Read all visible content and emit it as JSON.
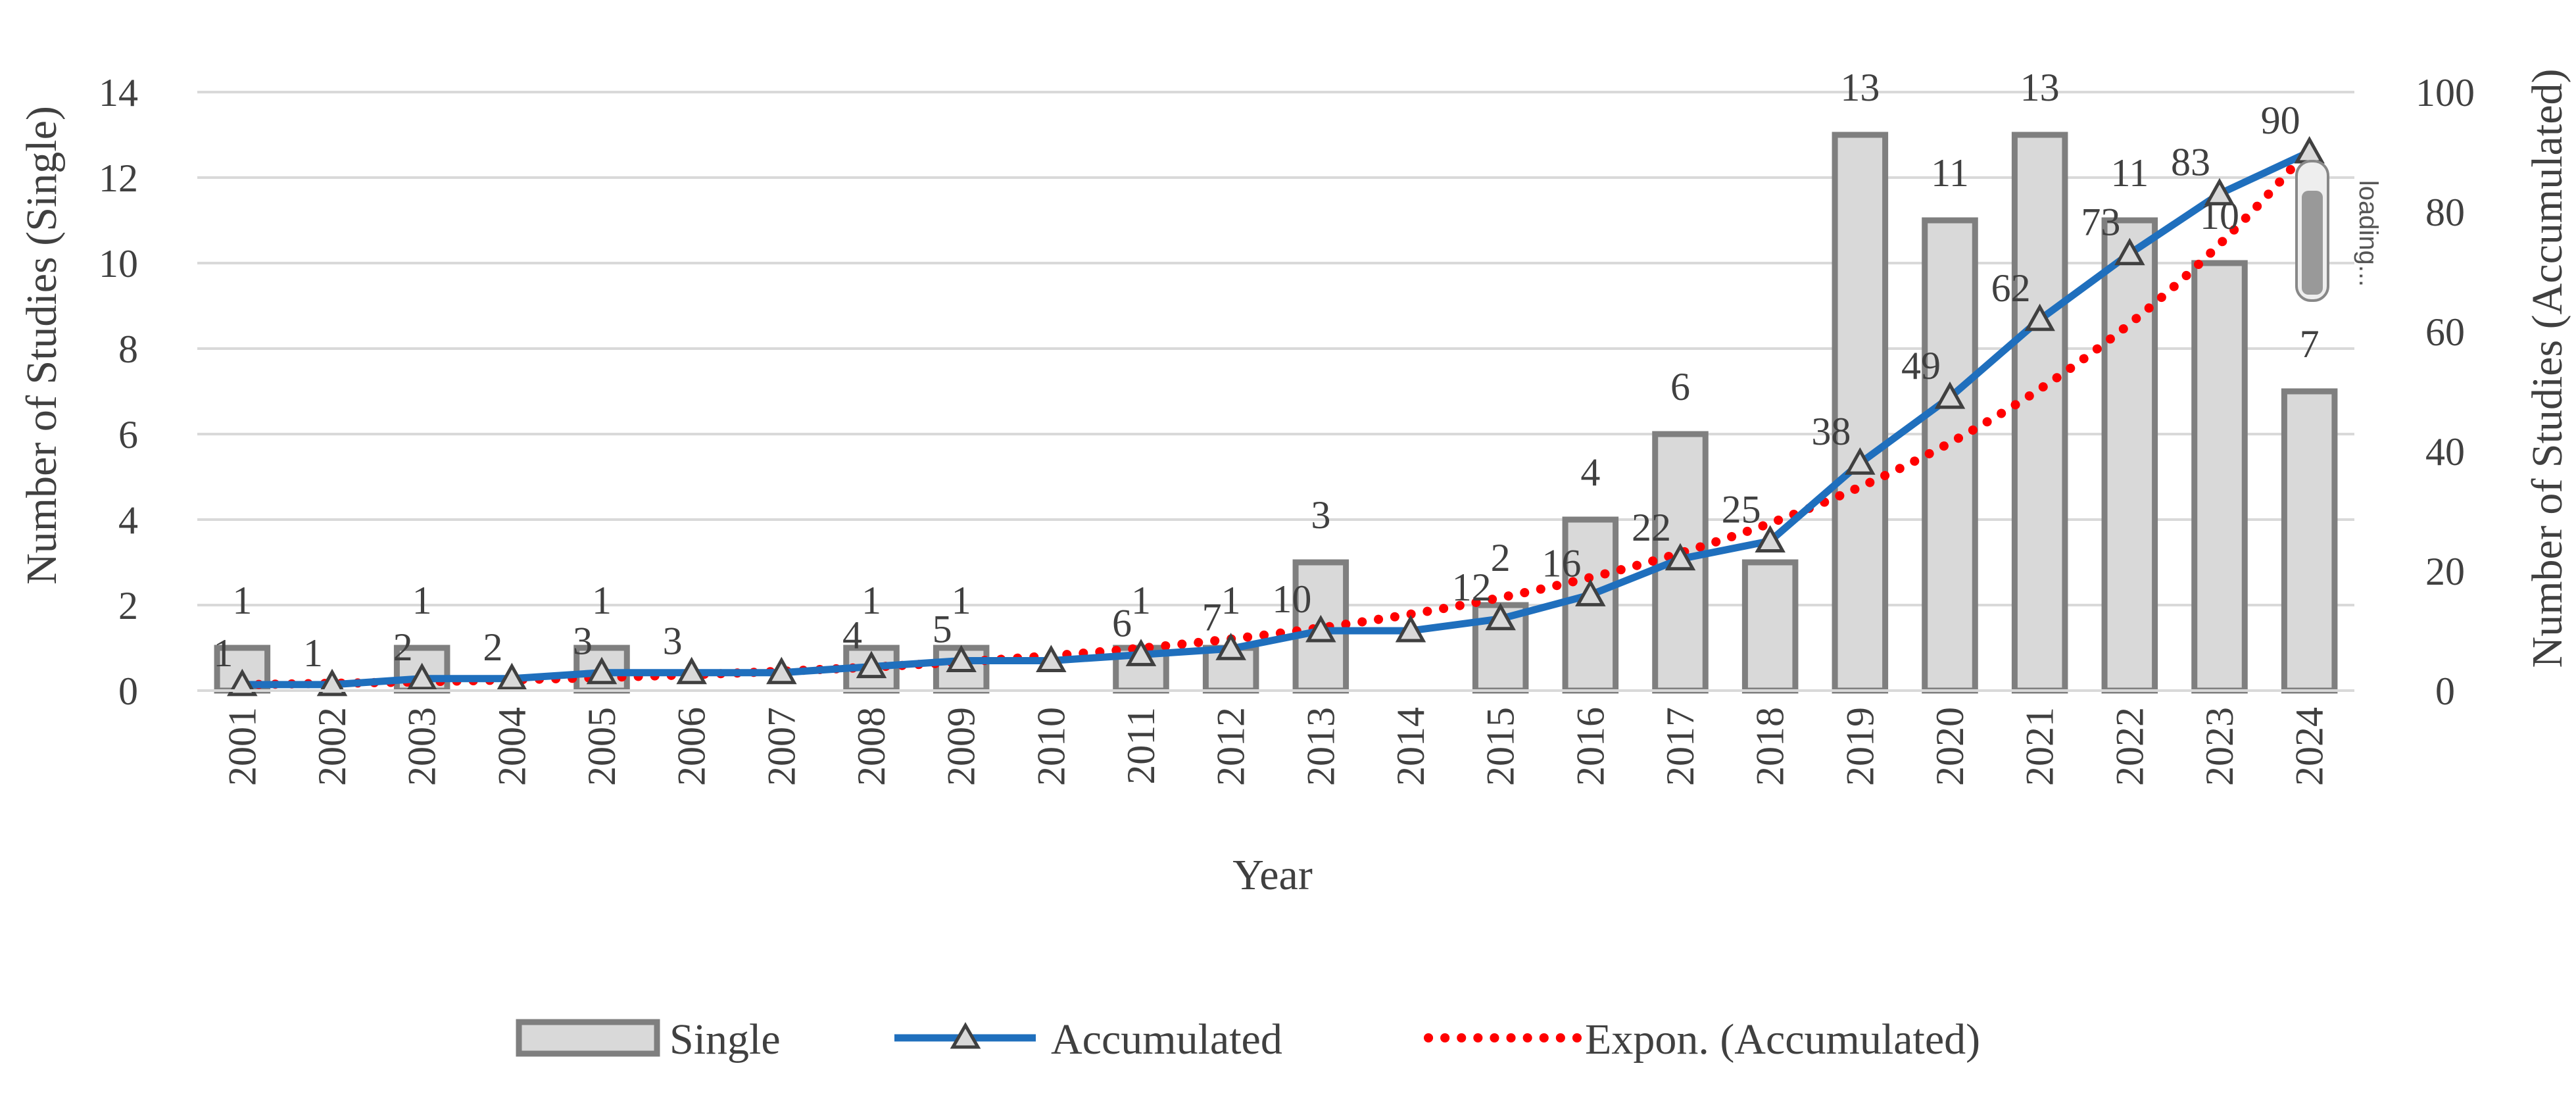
{
  "chart_data": {
    "type": "bar+line",
    "categories": [
      "2001",
      "2002",
      "2003",
      "2004",
      "2005",
      "2006",
      "2007",
      "2008",
      "2009",
      "2010",
      "2011",
      "2012",
      "2013",
      "2014",
      "2015",
      "2016",
      "2017",
      "2018",
      "2019",
      "2020",
      "2021",
      "2022",
      "2023",
      "2024"
    ],
    "series": [
      {
        "name": "Single",
        "type": "bar",
        "axis": "left",
        "values": [
          1,
          0,
          1,
          0,
          1,
          0,
          0,
          1,
          1,
          0,
          1,
          1,
          3,
          0,
          2,
          4,
          6,
          3,
          13,
          11,
          13,
          11,
          10,
          7
        ],
        "labels": [
          "1",
          "",
          "1",
          "",
          "1",
          "",
          "",
          "1",
          "1",
          "",
          "1",
          "1",
          "3",
          "",
          "2",
          "4",
          "6",
          "",
          "13",
          "11",
          "13",
          "11",
          "10",
          "7"
        ]
      },
      {
        "name": "Accumulated",
        "type": "line",
        "axis": "right",
        "values": [
          1,
          1,
          2,
          2,
          3,
          3,
          3,
          4,
          5,
          5,
          6,
          7,
          10,
          10,
          12,
          16,
          22,
          25,
          38,
          49,
          62,
          73,
          83,
          90
        ],
        "labels": [
          "1",
          "1",
          "2",
          "2",
          "3",
          "3",
          "",
          "4",
          "5",
          "",
          "6",
          "7",
          "10",
          "",
          "12",
          "16",
          "22",
          "25",
          "38",
          "49",
          "62",
          "73",
          "83",
          "90"
        ]
      },
      {
        "name": "Expon. (Accumulated)",
        "type": "trendline",
        "axis": "right"
      }
    ],
    "xlabel": "Year",
    "ylabel": "Number of Studies (Single)",
    "y2label": "Number of Studies (Accumulated)",
    "ylim": [
      0,
      14
    ],
    "yticks": [
      "0",
      "2",
      "4",
      "6",
      "8",
      "10",
      "12",
      "14"
    ],
    "y2lim": [
      0,
      100
    ],
    "y2ticks": [
      "0",
      "20",
      "40",
      "60",
      "80",
      "100"
    ],
    "grid": true,
    "legend_position": "bottom",
    "legend": [
      "Single",
      "Accumulated",
      "Expon. (Accumulated)"
    ]
  },
  "overlay": {
    "loading_text": "loading..."
  },
  "colors": {
    "bar_fill": "#d9d9d9",
    "bar_stroke": "#7f7f7f",
    "line": "#1f6fbd",
    "marker_stroke": "#404040",
    "trend": "#ff0000",
    "grid": "#d9d9d9",
    "text": "#404040"
  }
}
